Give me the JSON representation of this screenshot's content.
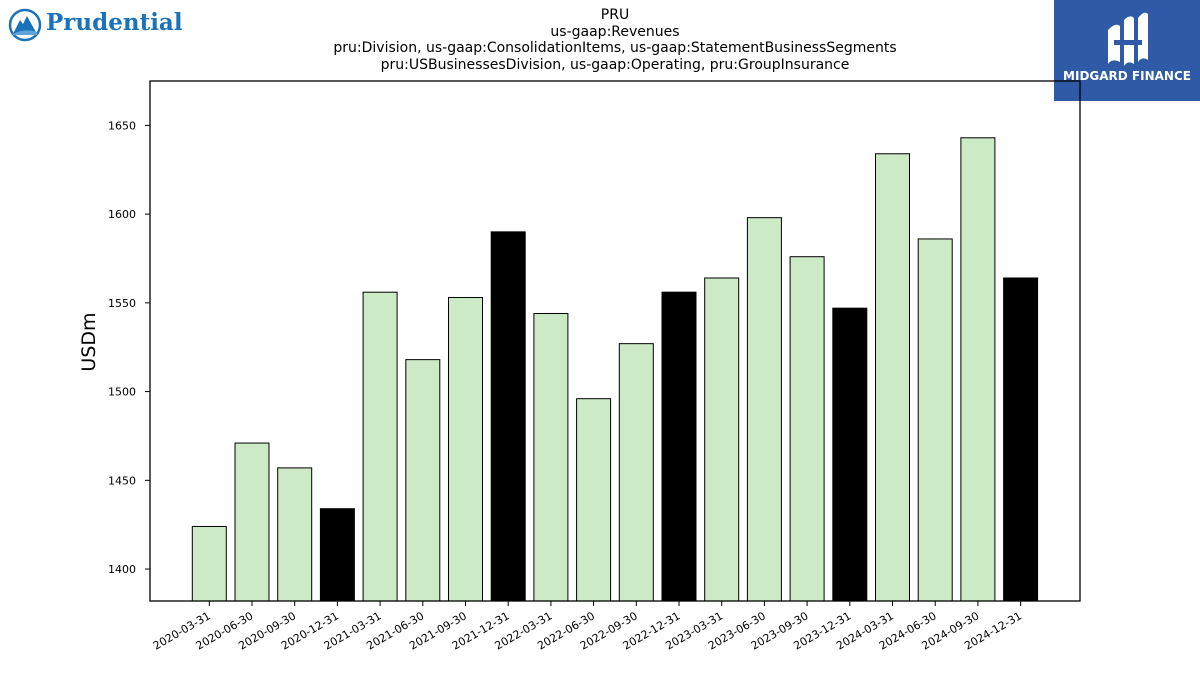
{
  "logos": {
    "left_text": "Prudential",
    "left_color": "#1a73ba",
    "right_text": "MIDGARD FINANCE",
    "right_bg": "#2e5aa8"
  },
  "titles": {
    "line1": "PRU",
    "line2": "us-gaap:Revenues",
    "line3": "pru:Division, us-gaap:ConsolidationItems, us-gaap:StatementBusinessSegments",
    "line4": "pru:USBusinessesDivision, us-gaap:Operating, pru:GroupInsurance"
  },
  "chart_data": {
    "type": "bar",
    "ylabel": "USDm",
    "xlabel": "",
    "ylim": [
      1382,
      1675
    ],
    "yticks": [
      1400,
      1450,
      1500,
      1550,
      1600,
      1650
    ],
    "grid": false,
    "categories": [
      "2020-03-31",
      "2020-06-30",
      "2020-09-30",
      "2020-12-31",
      "2021-03-31",
      "2021-06-30",
      "2021-09-30",
      "2021-12-31",
      "2022-03-31",
      "2022-06-30",
      "2022-09-30",
      "2022-12-31",
      "2023-03-31",
      "2023-06-30",
      "2023-09-30",
      "2023-12-31",
      "2024-03-31",
      "2024-06-30",
      "2024-09-30",
      "2024-12-31"
    ],
    "values": [
      1424,
      1471,
      1457,
      1434,
      1556,
      1518,
      1553,
      1590,
      1544,
      1496,
      1527,
      1556,
      1564,
      1598,
      1576,
      1547,
      1634,
      1586,
      1643,
      1564
    ],
    "colors": {
      "quarter_bar": "#cdeac6",
      "year_end_bar": "#000000",
      "edge": "#000000"
    }
  }
}
